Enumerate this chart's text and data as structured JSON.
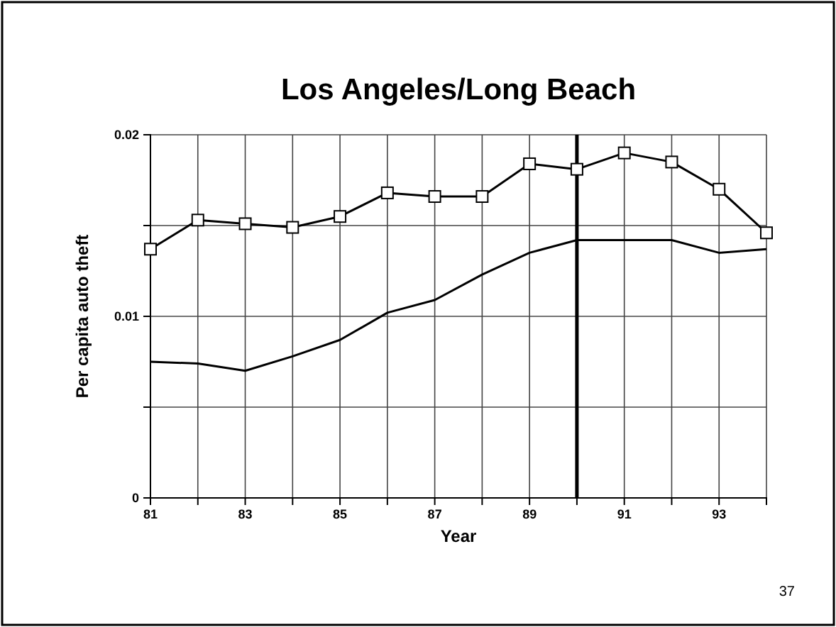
{
  "chart_data": {
    "type": "line",
    "title": "Los Angeles/Long Beach",
    "xlabel": "Year",
    "ylabel": "Per capita auto theft",
    "x": [
      81,
      82,
      83,
      84,
      85,
      86,
      87,
      88,
      89,
      90,
      91,
      92,
      93,
      94
    ],
    "series": [
      {
        "color": "#000000",
        "marker": "square",
        "values": [
          0.0137,
          0.0153,
          0.0151,
          0.0149,
          0.0155,
          0.0168,
          0.0166,
          0.0166,
          0.0184,
          0.0181,
          0.019,
          0.0185,
          0.017,
          0.0146
        ]
      },
      {
        "color": "#000000",
        "marker": "none",
        "values": [
          0.0075,
          0.0074,
          0.007,
          0.0078,
          0.0087,
          0.0102,
          0.0109,
          0.0123,
          0.0135,
          0.0142,
          0.0142,
          0.0142,
          0.0135,
          0.0137
        ]
      }
    ],
    "xlim": [
      81,
      94
    ],
    "ylim": [
      0,
      0.02
    ],
    "xticks": [
      81,
      {
        "value": 82,
        "label": null
      },
      83,
      {
        "value": 84,
        "label": null
      },
      85,
      {
        "value": 86,
        "label": null
      },
      87,
      {
        "value": 88,
        "label": null
      },
      89,
      {
        "value": 90,
        "label": null
      },
      91,
      {
        "value": 92,
        "label": null
      },
      93,
      {
        "value": 94,
        "label": null
      }
    ],
    "yticks": [
      0,
      {
        "value": 0.005,
        "label": null
      },
      0.01,
      {
        "value": 0.015,
        "label": null
      },
      0.02
    ],
    "grid": true,
    "line_style": "solid",
    "ref_lines": [
      {
        "axis": "x",
        "value": 90,
        "color": "#000000"
      }
    ],
    "annotations": [
      "37"
    ]
  }
}
